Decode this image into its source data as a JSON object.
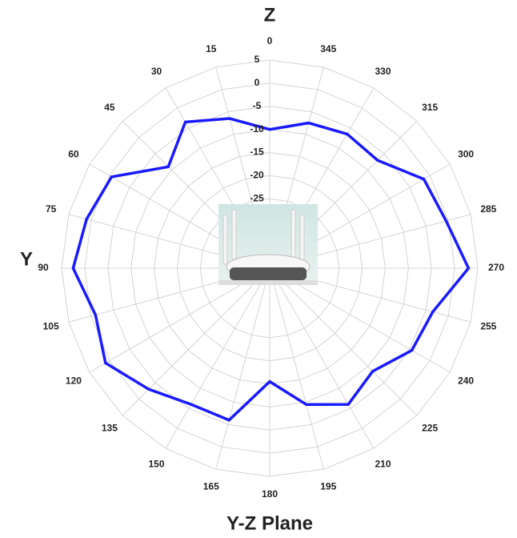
{
  "chart_data": {
    "type": "radar",
    "title": "Y-Z Plane",
    "axis_top_label": "Z",
    "axis_left_label": "Y",
    "categories": [
      "0",
      "15",
      "30",
      "45",
      "60",
      "75",
      "90",
      "105",
      "120",
      "135",
      "150",
      "165",
      "180",
      "195",
      "210",
      "225",
      "240",
      "255",
      "270",
      "285",
      "300",
      "315",
      "330",
      "345"
    ],
    "values": [
      -10,
      -6.5,
      -3.5,
      -9,
      -0.5,
      1,
      2.5,
      -1,
      1,
      -3,
      -6,
      -6,
      -15.5,
      -9.5,
      -6,
      -8.5,
      -4.5,
      -3.5,
      3,
      -0.5,
      -1.5,
      -7,
      -6.5,
      -7.5
    ],
    "color": "#1a1aff",
    "direction": "counterclockwise",
    "ylim": [
      -40,
      5
    ],
    "yticks": [
      5,
      0,
      -5,
      -10,
      -15,
      -20,
      -25
    ],
    "grid": true
  }
}
